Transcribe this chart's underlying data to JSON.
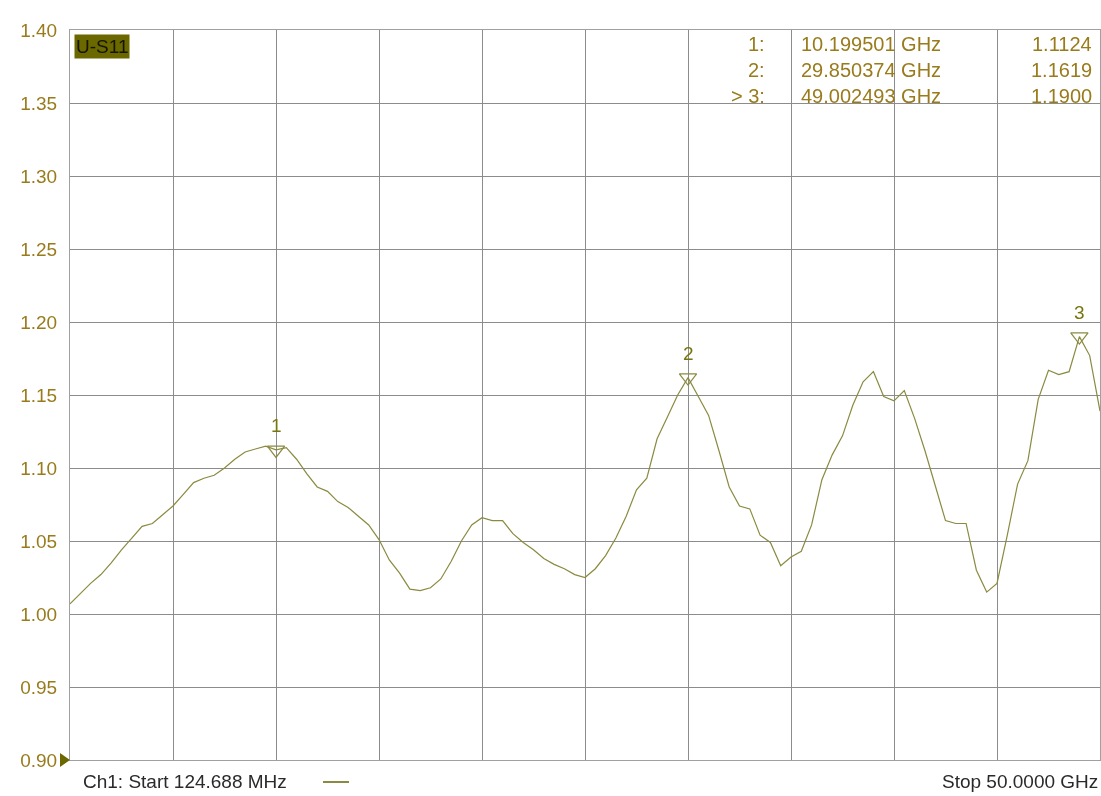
{
  "chart_data": {
    "type": "line",
    "categories": [
      null,
      null,
      null,
      null,
      null,
      null,
      null,
      null,
      null,
      null,
      null,
      null,
      null,
      null,
      null,
      null,
      null,
      null,
      null,
      null,
      null,
      null,
      null,
      null,
      null,
      null,
      null,
      null,
      null,
      null,
      null,
      null,
      null,
      null,
      null,
      null,
      null,
      null,
      null,
      null,
      null,
      null,
      null,
      null,
      null,
      null,
      null,
      null,
      null,
      null,
      null,
      null,
      null,
      null,
      null,
      null,
      null,
      null,
      null,
      null,
      null,
      null,
      null,
      null,
      null,
      null,
      null,
      null,
      null,
      null,
      null,
      null,
      null,
      null,
      null,
      null,
      null,
      null,
      null,
      null,
      null,
      null,
      null,
      null,
      null,
      null,
      null,
      null,
      null,
      null,
      null,
      null,
      null,
      null,
      null,
      null,
      null,
      null,
      null,
      null,
      null
    ],
    "series": [
      {
        "color": "#8a8a40",
        "values": [
          1.007,
          1.014,
          1.021,
          1.027,
          1.035,
          1.044,
          1.052,
          1.06,
          1.062,
          1.068,
          1.074,
          1.082,
          1.09,
          1.093,
          1.095,
          1.1,
          1.106,
          1.111,
          1.113,
          1.115,
          1.1124,
          1.114,
          1.106,
          1.096,
          1.087,
          1.084,
          1.077,
          1.073,
          1.067,
          1.061,
          1.051,
          1.037,
          1.028,
          1.017,
          1.016,
          1.018,
          1.024,
          1.036,
          1.05,
          1.061,
          1.066,
          1.064,
          1.064,
          1.055,
          1.049,
          1.044,
          1.038,
          1.034,
          1.031,
          1.027,
          1.025,
          1.031,
          1.04,
          1.052,
          1.067,
          1.085,
          1.093,
          1.12,
          1.135,
          1.15,
          1.1619,
          1.149,
          1.136,
          1.112,
          1.087,
          1.074,
          1.072,
          1.054,
          1.049,
          1.033,
          1.039,
          1.043,
          1.061,
          1.092,
          1.109,
          1.122,
          1.143,
          1.159,
          1.166,
          1.149,
          1.146,
          1.153,
          1.134,
          1.112,
          1.088,
          1.064,
          1.062,
          1.062,
          1.03,
          1.015,
          1.021,
          1.054,
          1.089,
          1.105,
          1.147,
          1.167,
          1.164,
          1.166,
          1.19,
          1.177,
          1.139
        ]
      },
      {
        "type": "scatter",
        "name": "1",
        "color": "#8a8a40",
        "marker": "triangle",
        "values": [
          null,
          null,
          null,
          null,
          null,
          null,
          null,
          null,
          null,
          null,
          null,
          null,
          null,
          null,
          null,
          null,
          null,
          null,
          null,
          null,
          1.1124,
          null,
          null,
          null,
          null,
          null,
          null,
          null,
          null,
          null,
          null,
          null,
          null,
          null,
          null,
          null,
          null,
          null,
          null,
          null,
          null,
          null,
          null,
          null,
          null,
          null,
          null,
          null,
          null,
          null,
          null,
          null,
          null,
          null,
          null,
          null,
          null,
          null,
          null,
          null,
          null,
          null,
          null,
          null,
          null,
          null,
          null,
          null,
          null,
          null,
          null,
          null,
          null,
          null,
          null,
          null,
          null,
          null,
          null,
          null,
          null,
          null,
          null,
          null,
          null,
          null,
          null,
          null,
          null,
          null,
          null,
          null,
          null,
          null,
          null,
          null,
          null,
          null,
          null,
          null,
          null
        ]
      },
      {
        "type": "scatter",
        "name": "2",
        "color": "#8a8a40",
        "marker": "triangle",
        "values": [
          null,
          null,
          null,
          null,
          null,
          null,
          null,
          null,
          null,
          null,
          null,
          null,
          null,
          null,
          null,
          null,
          null,
          null,
          null,
          null,
          null,
          null,
          null,
          null,
          null,
          null,
          null,
          null,
          null,
          null,
          null,
          null,
          null,
          null,
          null,
          null,
          null,
          null,
          null,
          null,
          null,
          null,
          null,
          null,
          null,
          null,
          null,
          null,
          null,
          null,
          null,
          null,
          null,
          null,
          null,
          null,
          null,
          null,
          null,
          null,
          1.1619,
          null,
          null,
          null,
          null,
          null,
          null,
          null,
          null,
          null,
          null,
          null,
          null,
          null,
          null,
          null,
          null,
          null,
          null,
          null,
          null,
          null,
          null,
          null,
          null,
          null,
          null,
          null,
          null,
          null,
          null,
          null,
          null,
          null,
          null,
          null,
          null,
          null,
          null,
          null,
          null
        ]
      },
      {
        "type": "scatter",
        "name": "3",
        "color": "#8a8a40",
        "marker": "triangle",
        "values": [
          null,
          null,
          null,
          null,
          null,
          null,
          null,
          null,
          null,
          null,
          null,
          null,
          null,
          null,
          null,
          null,
          null,
          null,
          null,
          null,
          null,
          null,
          null,
          null,
          null,
          null,
          null,
          null,
          null,
          null,
          null,
          null,
          null,
          null,
          null,
          null,
          null,
          null,
          null,
          null,
          null,
          null,
          null,
          null,
          null,
          null,
          null,
          null,
          null,
          null,
          null,
          null,
          null,
          null,
          null,
          null,
          null,
          null,
          null,
          null,
          null,
          null,
          null,
          null,
          null,
          null,
          null,
          null,
          null,
          null,
          null,
          null,
          null,
          null,
          null,
          null,
          null,
          null,
          null,
          null,
          null,
          null,
          null,
          null,
          null,
          null,
          null,
          null,
          null,
          null,
          null,
          null,
          null,
          null,
          null,
          null,
          null,
          null,
          1.19,
          null,
          null
        ]
      }
    ],
    "ylim": [
      0.9,
      1.4
    ],
    "yticks": [
      {
        "value": 0.9,
        "label": "0.90"
      },
      0.95,
      {
        "value": 1,
        "label": "1.00"
      },
      1.05,
      {
        "value": 1.1,
        "label": "1.10"
      },
      1.15,
      {
        "value": 1.2,
        "label": "1.20"
      },
      1.25,
      {
        "value": 1.3,
        "label": "1.30"
      },
      1.35,
      {
        "value": 1.4,
        "label": "1.40"
      }
    ],
    "tick_labels": "y",
    "grid": true,
    "annotations": [
      "U-S11",
      "1:",
      "10.199501 GHz",
      "1.1124",
      "2:",
      "29.850374 GHz",
      "1.1619",
      "> 3:",
      "49.002493 GHz",
      "1.1900",
      "Ch1: Start 124.688 MHz",
      "Stop 50.0000 GHz"
    ]
  }
}
